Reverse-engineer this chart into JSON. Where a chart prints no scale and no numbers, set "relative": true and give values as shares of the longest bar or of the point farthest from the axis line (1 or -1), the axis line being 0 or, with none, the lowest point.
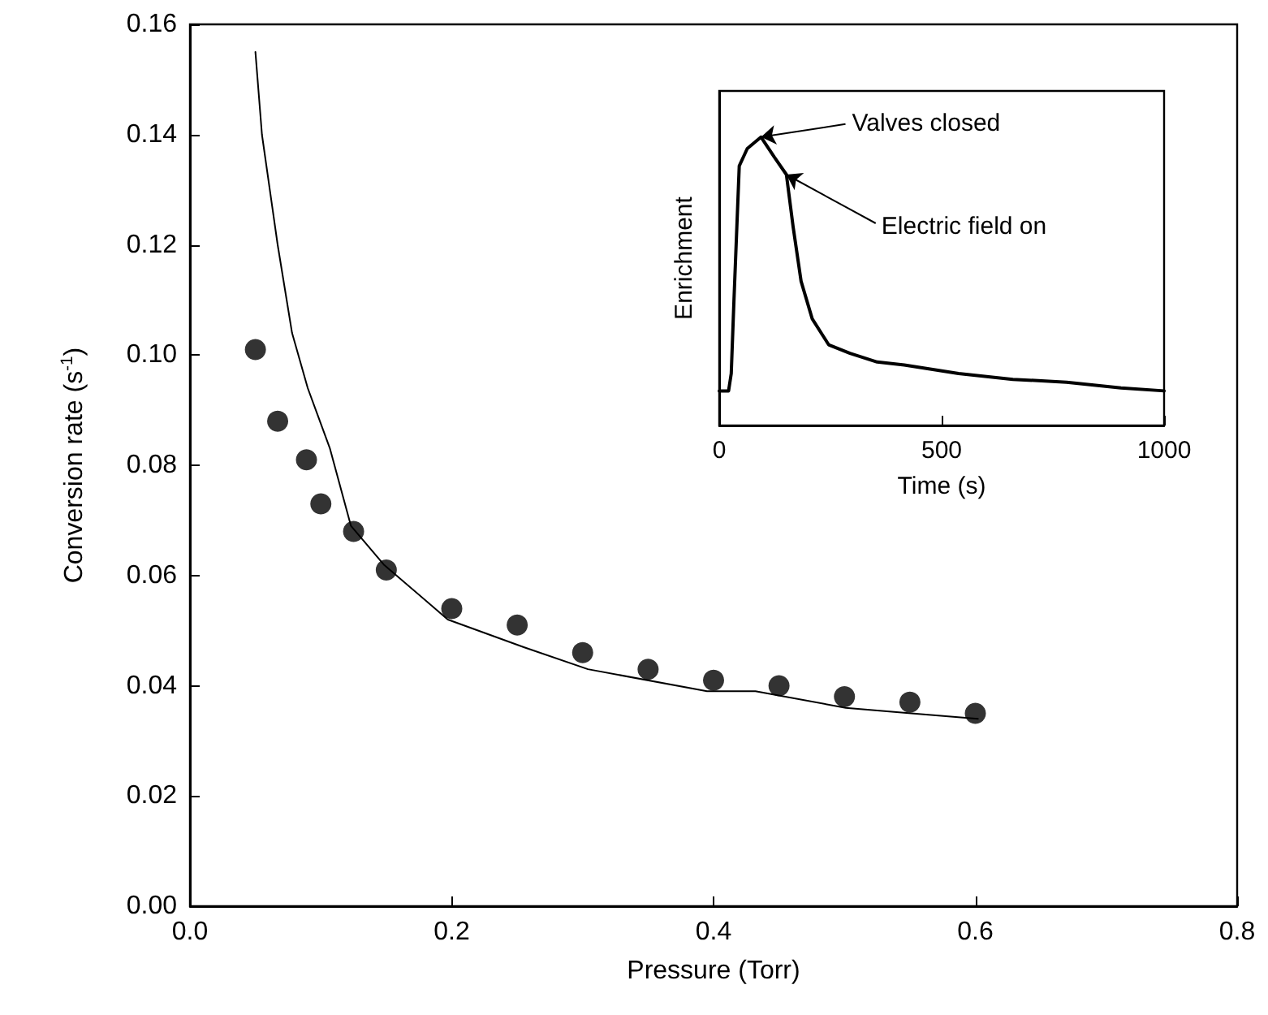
{
  "chart_data": [
    {
      "type": "scatter",
      "xlabel": "Pressure (Torr)",
      "ylabel": "Conversion rate (s$^{-1}$)",
      "xlim": [
        0,
        0.8
      ],
      "xticks": [
        {
          "value": 0,
          "label": "0.0"
        },
        {
          "value": 0.2,
          "label": "0.2"
        },
        {
          "value": 0.4,
          "label": "0.4"
        },
        {
          "value": 0.6,
          "label": "0.6"
        },
        {
          "value": 0.8,
          "label": "0.8"
        }
      ],
      "ylim": [
        0,
        0.16
      ],
      "yticks": [
        {
          "value": 0,
          "label": "0.00"
        },
        {
          "value": 0.02,
          "label": "0.02"
        },
        {
          "value": 0.04,
          "label": "0.04"
        },
        {
          "value": 0.06,
          "label": "0.06"
        },
        {
          "value": 0.08,
          "label": "0.08"
        },
        {
          "value": 0.1,
          "label": "0.10"
        },
        {
          "value": 0.12,
          "label": "0.12"
        },
        {
          "value": 0.14,
          "label": "0.14"
        },
        {
          "value": 0.16,
          "label": "0.16"
        }
      ],
      "series": [
        {
          "type": "scatter",
          "marker": "circle",
          "color": "#000000",
          "x": [
            0.05,
            0.067,
            0.089,
            0.1,
            0.125,
            0.15,
            0.2,
            0.25,
            0.3,
            0.35,
            0.4,
            0.45,
            0.5,
            0.55,
            0.6
          ],
          "values": [
            0.101,
            0.088,
            0.081,
            0.073,
            0.068,
            0.061,
            0.054,
            0.051,
            0.046,
            0.043,
            0.041,
            0.04,
            0.038,
            0.037,
            0.035
          ]
        },
        {
          "type": "line",
          "marker": "none",
          "line_style": "solid",
          "color": "#000000",
          "x": [
            0.05,
            0.055,
            0.067,
            0.078,
            0.09,
            0.107,
            0.123,
            0.148,
            0.197,
            0.255,
            0.304,
            0.395,
            0.432,
            0.501,
            0.551,
            0.602
          ],
          "values": [
            0.155,
            0.14,
            0.12,
            0.104,
            0.094,
            0.083,
            0.069,
            0.062,
            0.052,
            0.047,
            0.043,
            0.039,
            0.039,
            0.036,
            0.035,
            0.034
          ]
        }
      ]
    },
    {
      "type": "line",
      "xlabel": "Time (s)",
      "ylabel": "Enrichment",
      "relative": true,
      "tick_labels": "x",
      "marker": "none",
      "line_style": "solid",
      "color": "#000000",
      "xlim": [
        0,
        1000
      ],
      "xticks": [
        0,
        500,
        1000
      ],
      "x": [
        0,
        21,
        27,
        33,
        45,
        63,
        94,
        124,
        151,
        166,
        184,
        209,
        246,
        294,
        355,
        416,
        538,
        660,
        781,
        903,
        1000
      ],
      "values": [
        0.12,
        0.12,
        0.18,
        0.43,
        0.9,
        0.96,
        1,
        0.93,
        0.87,
        0.69,
        0.5,
        0.37,
        0.28,
        0.25,
        0.22,
        0.21,
        0.18,
        0.16,
        0.15,
        0.13,
        0.12
      ],
      "annotations": [
        {
          "text": "Valves closed",
          "x": 94,
          "y": 1
        },
        {
          "text": "Electric field on",
          "x": 151,
          "y": 0.87
        }
      ]
    }
  ]
}
